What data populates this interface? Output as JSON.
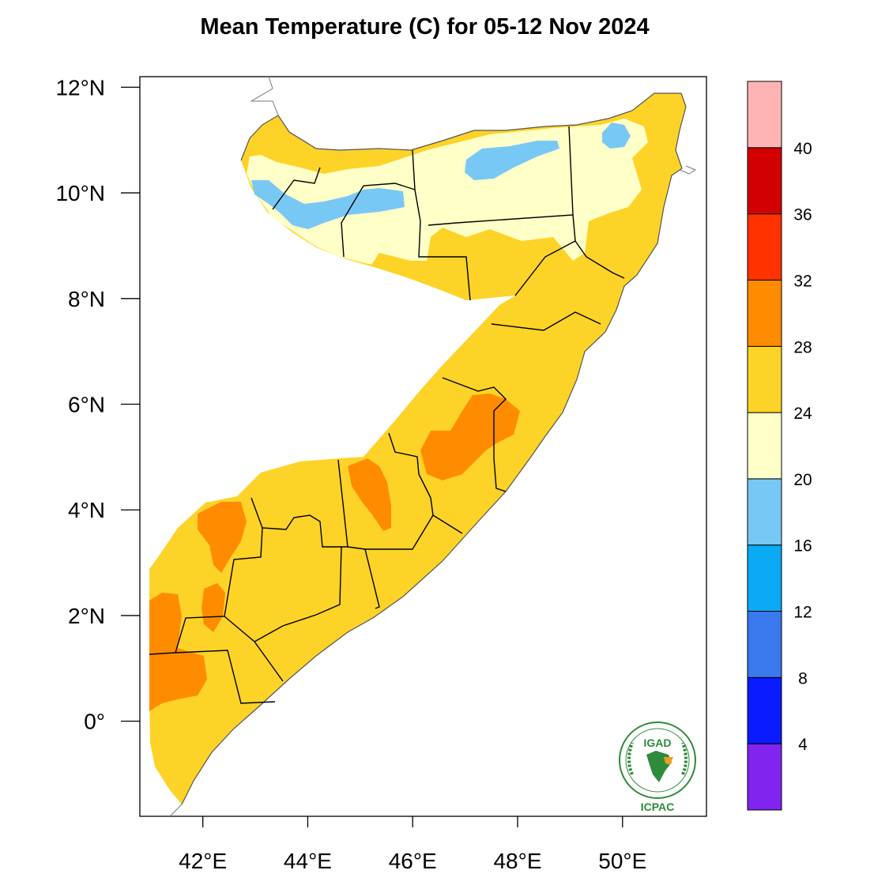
{
  "title": "Mean Temperature (C) for 05-12 Nov 2024",
  "map": {
    "lon_range": [
      40.8,
      51.6
    ],
    "lat_range": [
      -1.8,
      12.2
    ],
    "lon_ticks": [
      {
        "value": 42,
        "label": "42°E"
      },
      {
        "value": 44,
        "label": "44°E"
      },
      {
        "value": 46,
        "label": "46°E"
      },
      {
        "value": 48,
        "label": "48°E"
      },
      {
        "value": 50,
        "label": "50°E"
      }
    ],
    "lat_ticks": [
      {
        "value": 12,
        "label": "12°N"
      },
      {
        "value": 10,
        "label": "10°N"
      },
      {
        "value": 8,
        "label": "8°N"
      },
      {
        "value": 6,
        "label": "6°N"
      },
      {
        "value": 4,
        "label": "4°N"
      },
      {
        "value": 2,
        "label": "2°N"
      },
      {
        "value": 0,
        "label": "0°"
      }
    ]
  },
  "colorbar": {
    "unit": "C",
    "bins": [
      {
        "from": 0,
        "to": 4,
        "color": "#8224f0"
      },
      {
        "from": 4,
        "to": 8,
        "color": "#0a1cff"
      },
      {
        "from": 8,
        "to": 12,
        "color": "#3a78ee"
      },
      {
        "from": 12,
        "to": 16,
        "color": "#0aaaf5"
      },
      {
        "from": 16,
        "to": 20,
        "color": "#78c8f5"
      },
      {
        "from": 20,
        "to": 24,
        "color": "#ffffc8"
      },
      {
        "from": 24,
        "to": 28,
        "color": "#fdd327"
      },
      {
        "from": 28,
        "to": 32,
        "color": "#ff8c00"
      },
      {
        "from": 32,
        "to": 36,
        "color": "#ff3200"
      },
      {
        "from": 36,
        "to": 40,
        "color": "#d20000"
      },
      {
        "from": 40,
        "to": 44,
        "color": "#ffb4b4"
      }
    ],
    "labels": [
      "4",
      "8",
      "12",
      "16",
      "20",
      "24",
      "28",
      "32",
      "36",
      "40"
    ]
  },
  "logo": {
    "top_text": "IGAD",
    "bottom_text": "ICPAC"
  }
}
